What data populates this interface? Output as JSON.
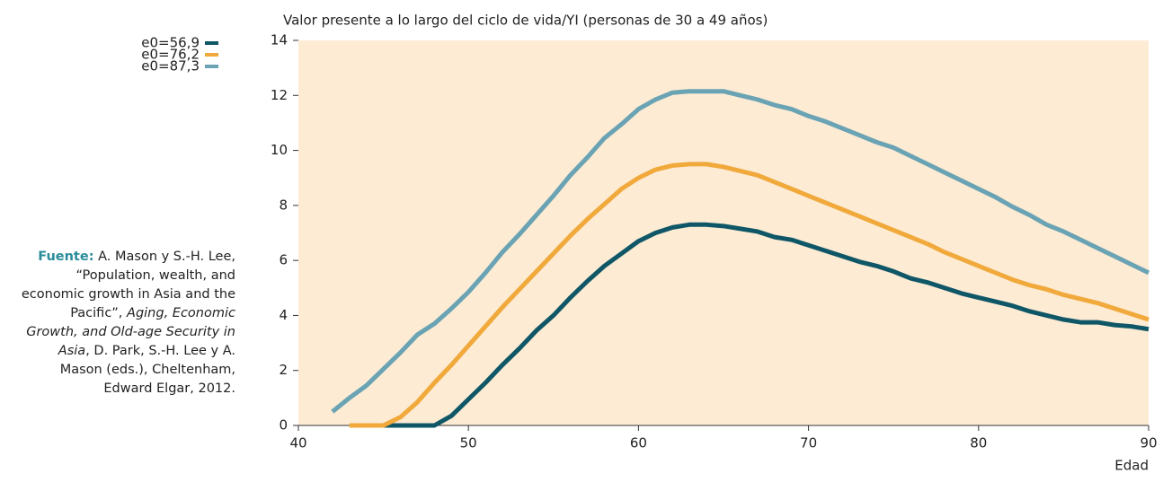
{
  "chart_data": {
    "type": "line",
    "title": "Valor presente a lo largo del ciclo de vida/YI (personas de 30 a 49 años)",
    "x_label": "Edad",
    "x": [
      42,
      43,
      44,
      45,
      46,
      47,
      48,
      49,
      50,
      51,
      52,
      53,
      54,
      55,
      56,
      57,
      58,
      59,
      60,
      61,
      62,
      63,
      64,
      65,
      66,
      67,
      68,
      69,
      70,
      71,
      72,
      73,
      74,
      75,
      76,
      77,
      78,
      79,
      80,
      81,
      82,
      83,
      84,
      85,
      86,
      87,
      88,
      89,
      90
    ],
    "series": [
      {
        "name": "e0=56,9",
        "color": "#0f5767",
        "values": [
          null,
          null,
          null,
          0,
          0,
          0,
          0,
          0.35,
          0.95,
          1.55,
          2.2,
          2.8,
          3.45,
          4.0,
          4.65,
          5.25,
          5.8,
          6.25,
          6.7,
          7.0,
          7.2,
          7.3,
          7.3,
          7.25,
          7.15,
          7.05,
          6.85,
          6.75,
          6.55,
          6.35,
          6.15,
          5.95,
          5.8,
          5.6,
          5.35,
          5.2,
          5.0,
          4.8,
          4.65,
          4.5,
          4.35,
          4.15,
          4.0,
          3.85,
          3.75,
          3.75,
          3.65,
          3.6,
          3.5
        ]
      },
      {
        "name": "e0=76,2",
        "color": "#f0a93a",
        "values": [
          null,
          0,
          0,
          0,
          0.3,
          0.85,
          1.55,
          2.2,
          2.9,
          3.6,
          4.3,
          4.95,
          5.6,
          6.25,
          6.9,
          7.5,
          8.05,
          8.6,
          9.0,
          9.3,
          9.45,
          9.5,
          9.5,
          9.4,
          9.25,
          9.1,
          8.85,
          8.6,
          8.35,
          8.1,
          7.85,
          7.6,
          7.35,
          7.1,
          6.85,
          6.6,
          6.3,
          6.05,
          5.8,
          5.55,
          5.3,
          5.1,
          4.95,
          4.75,
          4.6,
          4.45,
          4.25,
          4.05,
          3.85
        ]
      },
      {
        "name": "e0=87,3",
        "color": "#6aa3b3",
        "values": [
          0.5,
          1.0,
          1.45,
          2.05,
          2.65,
          3.3,
          3.7,
          4.25,
          4.85,
          5.55,
          6.3,
          6.95,
          7.65,
          8.35,
          9.1,
          9.75,
          10.45,
          10.95,
          11.5,
          11.85,
          12.1,
          12.15,
          12.15,
          12.15,
          12.0,
          11.85,
          11.65,
          11.5,
          11.25,
          11.05,
          10.8,
          10.55,
          10.3,
          10.1,
          9.8,
          9.5,
          9.2,
          8.9,
          8.6,
          8.3,
          7.95,
          7.65,
          7.3,
          7.05,
          6.75,
          6.45,
          6.15,
          5.85,
          5.55
        ]
      }
    ],
    "xlim": [
      40,
      90
    ],
    "xticks": [
      40,
      50,
      60,
      70,
      80,
      90
    ],
    "ylim": [
      0,
      14
    ],
    "yticks": [
      0,
      2,
      4,
      6,
      8,
      10,
      12,
      14
    ],
    "plot_background": "#fdebd4",
    "source": {
      "label": "Fuente:",
      "parts": [
        {
          "text": "A. Mason y S.-H. Lee, “Population, wealth, and economic growth in Asia and the Pacific”, "
        },
        {
          "text": "Aging, Economic Growth, and Old-age Security in Asia",
          "italic": true
        },
        {
          "text": ", D. Park, S.-H. Lee y A. Mason (eds.), Cheltenham, Edward Elgar, 2012."
        }
      ]
    }
  }
}
